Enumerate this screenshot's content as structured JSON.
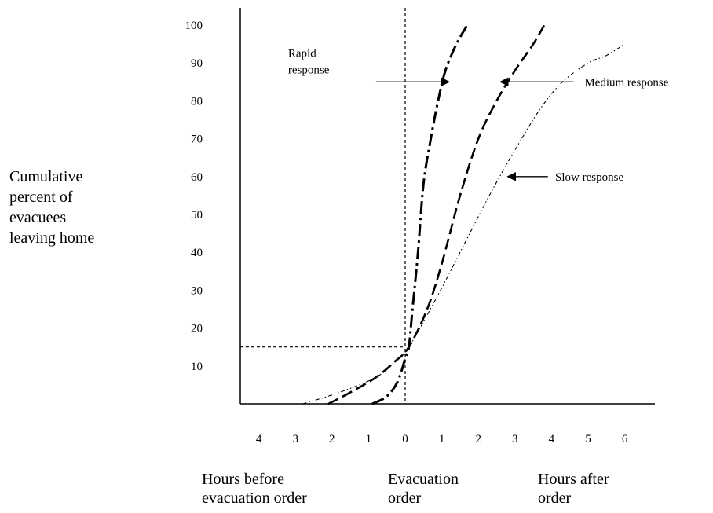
{
  "chart_data": {
    "type": "line",
    "title": "",
    "ylabel": [
      "Cumulative",
      "percent of",
      "evacuees",
      "leaving home"
    ],
    "x_group_labels": {
      "before": [
        "Hours before",
        "evacuation order"
      ],
      "order": [
        "Evacuation",
        "order"
      ],
      "after": [
        "Hours after",
        "order"
      ]
    },
    "x_ticks": [
      {
        "label": "4",
        "x": -4
      },
      {
        "label": "3",
        "x": -3
      },
      {
        "label": "2",
        "x": -2
      },
      {
        "label": "1",
        "x": -1
      },
      {
        "label": "0",
        "x": 0
      },
      {
        "label": "1",
        "x": 1
      },
      {
        "label": "2",
        "x": 2
      },
      {
        "label": "3",
        "x": 3
      },
      {
        "label": "4",
        "x": 4
      },
      {
        "label": "5",
        "x": 5
      },
      {
        "label": "6",
        "x": 6
      }
    ],
    "y_ticks": [
      10,
      20,
      30,
      40,
      50,
      60,
      70,
      80,
      90,
      100
    ],
    "xlim": [
      -4.5,
      6.5
    ],
    "ylim": [
      0,
      100
    ],
    "reference": {
      "x": 0,
      "y": 15
    },
    "series": [
      {
        "key": "rapid",
        "dash": "dashdot",
        "points": [
          [
            -0.9,
            0
          ],
          [
            -0.5,
            2
          ],
          [
            -0.2,
            6
          ],
          [
            0,
            12
          ],
          [
            0.1,
            15
          ],
          [
            0.2,
            25
          ],
          [
            0.35,
            40
          ],
          [
            0.5,
            58
          ],
          [
            0.7,
            70
          ],
          [
            0.9,
            80
          ],
          [
            1.1,
            88
          ],
          [
            1.4,
            95
          ],
          [
            1.7,
            100
          ]
        ]
      },
      {
        "key": "medium",
        "dash": "dash",
        "points": [
          [
            -2.1,
            0
          ],
          [
            -1.5,
            3
          ],
          [
            -0.8,
            7
          ],
          [
            -0.3,
            11
          ],
          [
            0.1,
            15
          ],
          [
            0.6,
            25
          ],
          [
            1.0,
            37
          ],
          [
            1.5,
            55
          ],
          [
            2.0,
            70
          ],
          [
            2.5,
            80
          ],
          [
            3.0,
            88
          ],
          [
            3.5,
            95
          ],
          [
            3.8,
            100
          ]
        ]
      },
      {
        "key": "slow",
        "dash": "dotdotdash",
        "points": [
          [
            -2.8,
            0
          ],
          [
            -1.8,
            3
          ],
          [
            -0.8,
            7
          ],
          [
            -0.3,
            11
          ],
          [
            0.1,
            15
          ],
          [
            0.8,
            27
          ],
          [
            1.5,
            40
          ],
          [
            2.3,
            55
          ],
          [
            3.0,
            67
          ],
          [
            3.7,
            78
          ],
          [
            4.3,
            85
          ],
          [
            5.0,
            90
          ],
          [
            5.5,
            92
          ],
          [
            6.0,
            95
          ]
        ]
      }
    ],
    "annotations": [
      {
        "lines": [
          "Rapid",
          "response"
        ],
        "arrow_from": [
          -0.8,
          85
        ],
        "arrow_to": [
          1.2,
          85
        ],
        "text_at": [
          -3.2,
          90.5
        ]
      },
      {
        "lines": [
          "Medium response"
        ],
        "arrow_from": [
          4.6,
          85
        ],
        "arrow_to": [
          2.6,
          85
        ],
        "text_at": [
          4.9,
          85
        ]
      },
      {
        "lines": [
          "Slow response"
        ],
        "arrow_from": [
          3.9,
          60
        ],
        "arrow_to": [
          2.8,
          60
        ],
        "text_at": [
          4.1,
          60
        ]
      }
    ]
  }
}
